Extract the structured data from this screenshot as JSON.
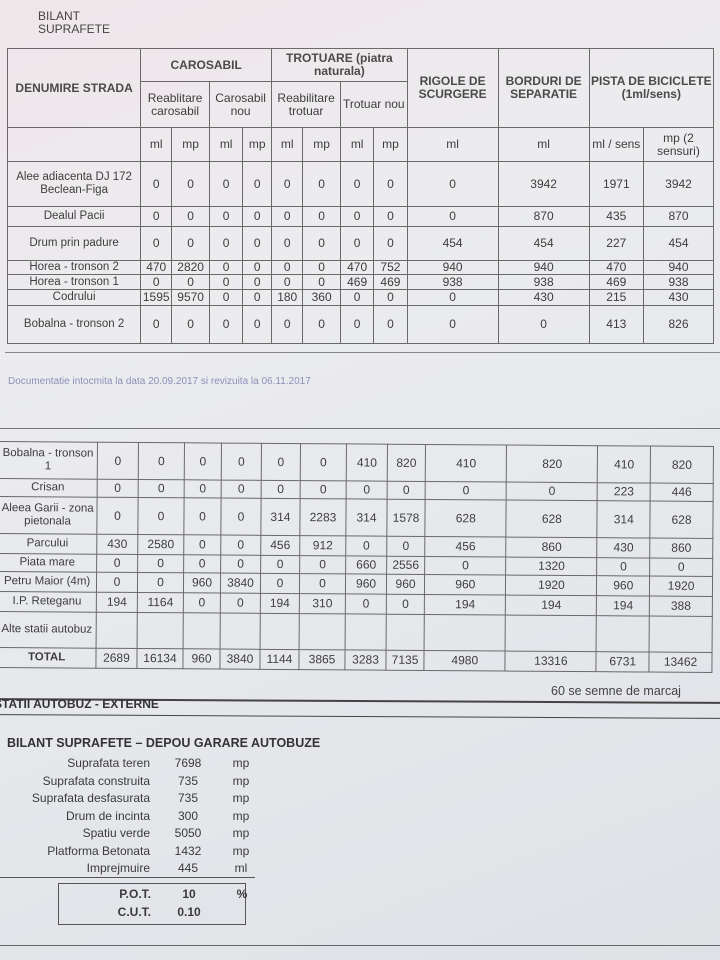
{
  "title": "BILANT SUPRAFETE",
  "headers": {
    "name": "DENUMIRE STRADA",
    "carosabil": "CAROSABIL",
    "trotuare": "TROTUARE (piatra naturala)",
    "rigole": "RIGOLE DE SCURGERE",
    "borduri": "BORDURI DE SEPARATIE",
    "pista": "PISTA DE BICICLETE (1ml/sens)",
    "reabilitare_carosabil": "Reablitare carosabil",
    "carosabil_nou": "Carosabil nou",
    "reabilitare_trotuar": "Reabilitare trotuar",
    "trotuar_nou": "Trotuar nou",
    "units": [
      "ml",
      "mp",
      "ml",
      "mp",
      "ml",
      "mp",
      "ml",
      "mp",
      "ml",
      "ml",
      "ml / sens",
      "mp (2 sensuri)"
    ]
  },
  "table1_rows": [
    {
      "name": "Alee adiacenta DJ 172 Beclean-Figa",
      "values": [
        "0",
        "0",
        "0",
        "0",
        "0",
        "0",
        "0",
        "0",
        "0",
        "3942",
        "1971",
        "3942"
      ]
    },
    {
      "name": "Dealul Pacii",
      "values": [
        "0",
        "0",
        "0",
        "0",
        "0",
        "0",
        "0",
        "0",
        "0",
        "870",
        "435",
        "870"
      ]
    },
    {
      "name": "Drum prin padure",
      "values": [
        "0",
        "0",
        "0",
        "0",
        "0",
        "0",
        "0",
        "0",
        "454",
        "454",
        "227",
        "454"
      ]
    },
    {
      "name": "Horea - tronson 2",
      "values": [
        "470",
        "2820",
        "0",
        "0",
        "0",
        "0",
        "470",
        "752",
        "940",
        "940",
        "470",
        "940"
      ]
    },
    {
      "name": "Horea - tronson 1",
      "values": [
        "0",
        "0",
        "0",
        "0",
        "0",
        "0",
        "469",
        "469",
        "938",
        "938",
        "469",
        "938"
      ]
    },
    {
      "name": "Codrului",
      "values": [
        "1595",
        "9570",
        "0",
        "0",
        "180",
        "360",
        "0",
        "0",
        "0",
        "430",
        "215",
        "430"
      ]
    },
    {
      "name": "Bobalna - tronson 2",
      "values": [
        "0",
        "0",
        "0",
        "0",
        "0",
        "0",
        "0",
        "0",
        "0",
        "0",
        "413",
        "826"
      ]
    }
  ],
  "footer_note": "Documentatie intocmita la data 20.09.2017 si revizuita la 06.11.2017",
  "table2_rows": [
    {
      "name": "Bobalna - tronson 1",
      "values": [
        "0",
        "0",
        "0",
        "0",
        "0",
        "0",
        "410",
        "820",
        "410",
        "820",
        "410",
        "820"
      ]
    },
    {
      "name": "Crisan",
      "values": [
        "0",
        "0",
        "0",
        "0",
        "0",
        "0",
        "0",
        "0",
        "0",
        "0",
        "223",
        "446"
      ]
    },
    {
      "name": "Aleea Garii - zona pietonala",
      "values": [
        "0",
        "0",
        "0",
        "0",
        "314",
        "2283",
        "314",
        "1578",
        "628",
        "628",
        "314",
        "628"
      ]
    },
    {
      "name": "Parcului",
      "values": [
        "430",
        "2580",
        "0",
        "0",
        "456",
        "912",
        "0",
        "0",
        "456",
        "860",
        "430",
        "860"
      ]
    },
    {
      "name": "Piata mare",
      "values": [
        "0",
        "0",
        "0",
        "0",
        "0",
        "0",
        "660",
        "2556",
        "0",
        "1320",
        "0",
        "0"
      ]
    },
    {
      "name": "Petru Maior (4m)",
      "values": [
        "0",
        "0",
        "960",
        "3840",
        "0",
        "0",
        "960",
        "960",
        "960",
        "1920",
        "960",
        "1920"
      ]
    },
    {
      "name": "I.P. Reteganu",
      "values": [
        "194",
        "1164",
        "0",
        "0",
        "194",
        "310",
        "0",
        "0",
        "194",
        "194",
        "194",
        "388"
      ]
    },
    {
      "name": "Alte statii autobuz",
      "values": [
        "",
        "",
        "",
        "",
        "",
        "",
        "",
        "",
        "",
        "",
        "",
        ""
      ]
    },
    {
      "name": "TOTAL",
      "values": [
        "2689",
        "16134",
        "960",
        "3840",
        "1144",
        "3865",
        "3283",
        "7135",
        "4980",
        "13316",
        "6731",
        "13462"
      ]
    }
  ],
  "marcaj_note": "60 se semne de marcaj",
  "external_title": "STATII AUTOBUZ - EXTERNE",
  "depou": {
    "title": "BILANT SUPRAFETE – DEPOU GARARE AUTOBUZE",
    "rows": [
      {
        "label": "Suprafata teren",
        "value": "7698",
        "unit": "mp"
      },
      {
        "label": "Suprafata construita",
        "value": "735",
        "unit": "mp"
      },
      {
        "label": "Suprafata desfasurata",
        "value": "735",
        "unit": "mp"
      },
      {
        "label": "Drum de incinta",
        "value": "300",
        "unit": "mp"
      },
      {
        "label": "Spatiu verde",
        "value": "5050",
        "unit": "mp"
      },
      {
        "label": "Platforma Betonata",
        "value": "1432",
        "unit": "mp"
      },
      {
        "label": "Imprejmuire",
        "value": "445",
        "unit": "ml"
      }
    ],
    "pot": {
      "label": "P.O.T.",
      "value": "10",
      "unit": "%"
    },
    "cut": {
      "label": "C.U.T.",
      "value": "0.10"
    }
  }
}
